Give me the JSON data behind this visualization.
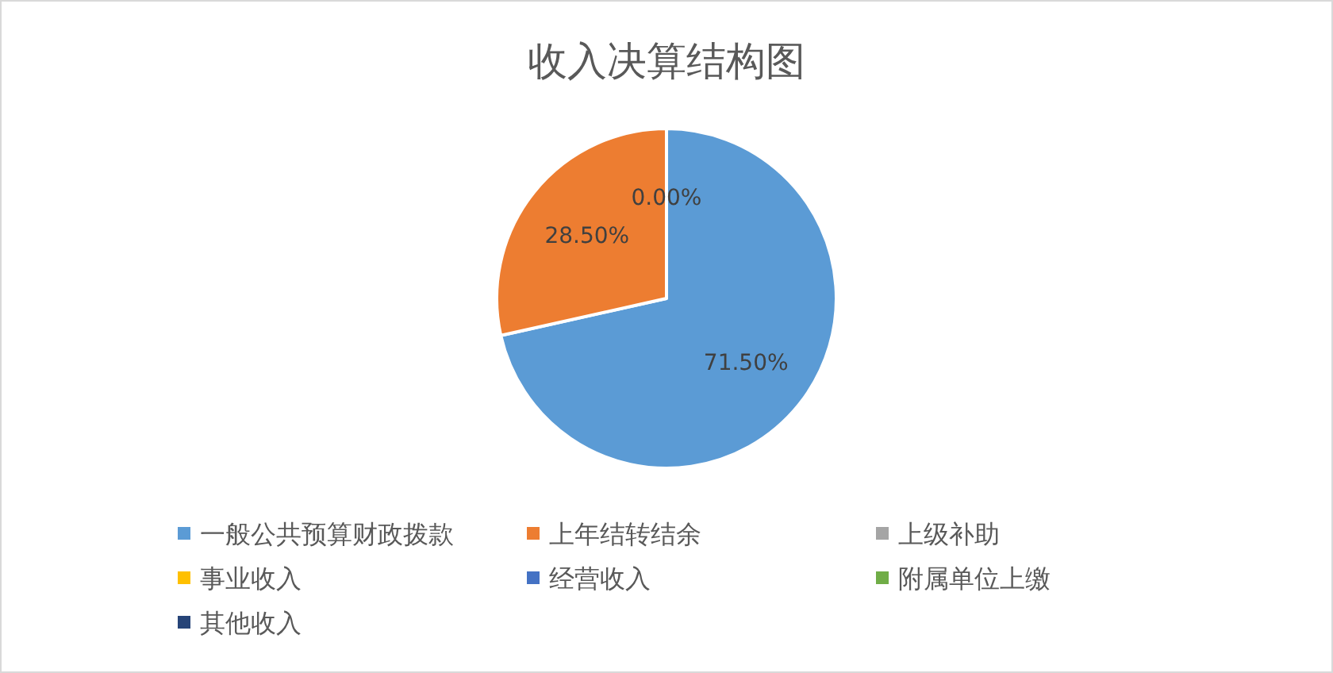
{
  "chart_data": {
    "type": "pie",
    "title": "收入决算结构图",
    "categories": [
      "一般公共预算财政拨款",
      "上年结转结余",
      "上级补助",
      "事业收入",
      "经营收入",
      "附属单位上缴",
      "其他收入"
    ],
    "values": [
      71.5,
      28.5,
      0,
      0,
      0,
      0,
      0
    ],
    "colors": [
      "#5b9bd5",
      "#ed7d31",
      "#a5a5a5",
      "#ffc000",
      "#4472c4",
      "#70ad47",
      "#264478"
    ],
    "value_labels": [
      "71.50%",
      "28.50%",
      "0.00%",
      null,
      null,
      null,
      null
    ],
    "legend": "bottom"
  }
}
